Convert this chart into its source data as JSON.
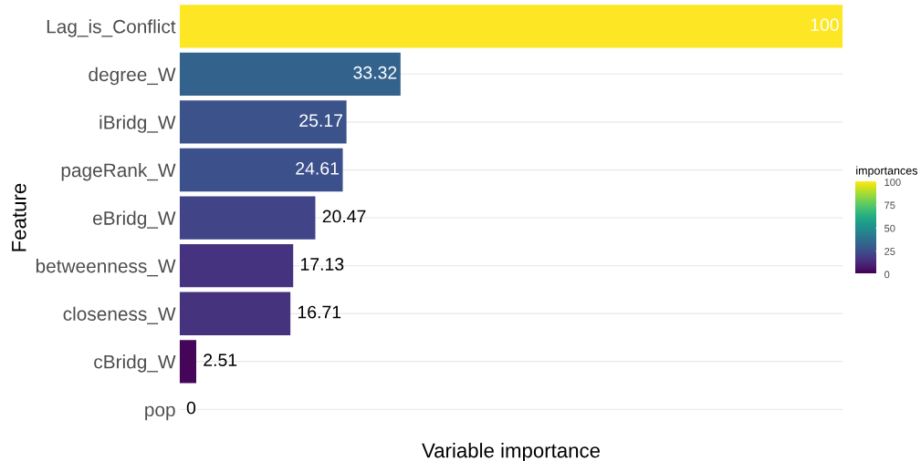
{
  "chart_data": {
    "type": "bar",
    "orientation": "horizontal",
    "xlabel": "Variable importance",
    "ylabel": "Feature",
    "clabel": "importances",
    "categories": [
      "Lag_is_Conflict",
      "degree_W",
      "iBridg_W",
      "pageRank_W",
      "eBridg_W",
      "betweenness_W",
      "closeness_W",
      "cBridg_W",
      "pop"
    ],
    "values": [
      100,
      33.32,
      25.17,
      24.61,
      20.47,
      17.13,
      16.71,
      2.51,
      0
    ],
    "colors": [
      "#fde725",
      "#33638d",
      "#3b528b",
      "#3c508b",
      "#414487",
      "#46337f",
      "#46337e",
      "#450559",
      "#440154"
    ],
    "data_labels": true,
    "grid": "y",
    "tick_labels": "y",
    "clim": [
      0,
      100
    ],
    "cticks": [
      0,
      25,
      50,
      75,
      100
    ]
  }
}
